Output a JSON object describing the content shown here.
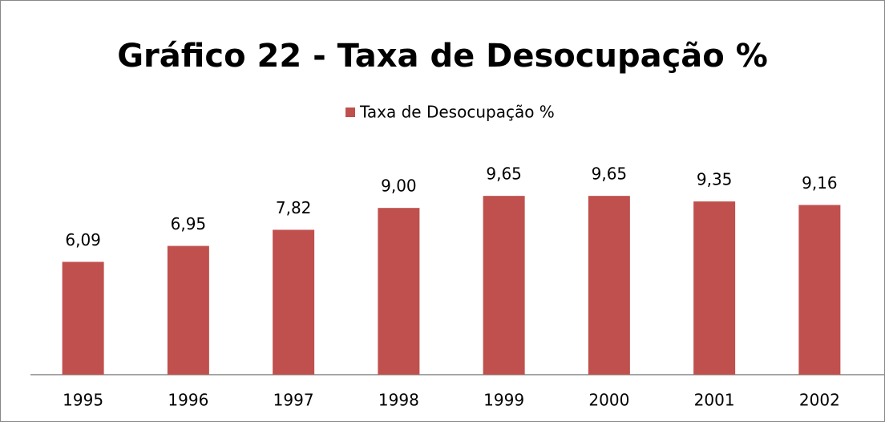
{
  "chart_data": {
    "type": "bar",
    "title": "Gráfico 22 - Taxa de Desocupação %",
    "categories": [
      "1995",
      "1996",
      "1997",
      "1998",
      "1999",
      "2000",
      "2001",
      "2002"
    ],
    "series": [
      {
        "name": "Taxa de Desocupação %",
        "color": "#c0504d",
        "values": [
          6.09,
          6.95,
          7.82,
          9.0,
          9.65,
          9.65,
          9.35,
          9.16
        ],
        "value_labels": [
          "6,09",
          "6,95",
          "7,82",
          "9,00",
          "9,65",
          "9,65",
          "9,35",
          "9,16"
        ]
      }
    ],
    "ylim": [
      0,
      11
    ],
    "legend": "top"
  }
}
